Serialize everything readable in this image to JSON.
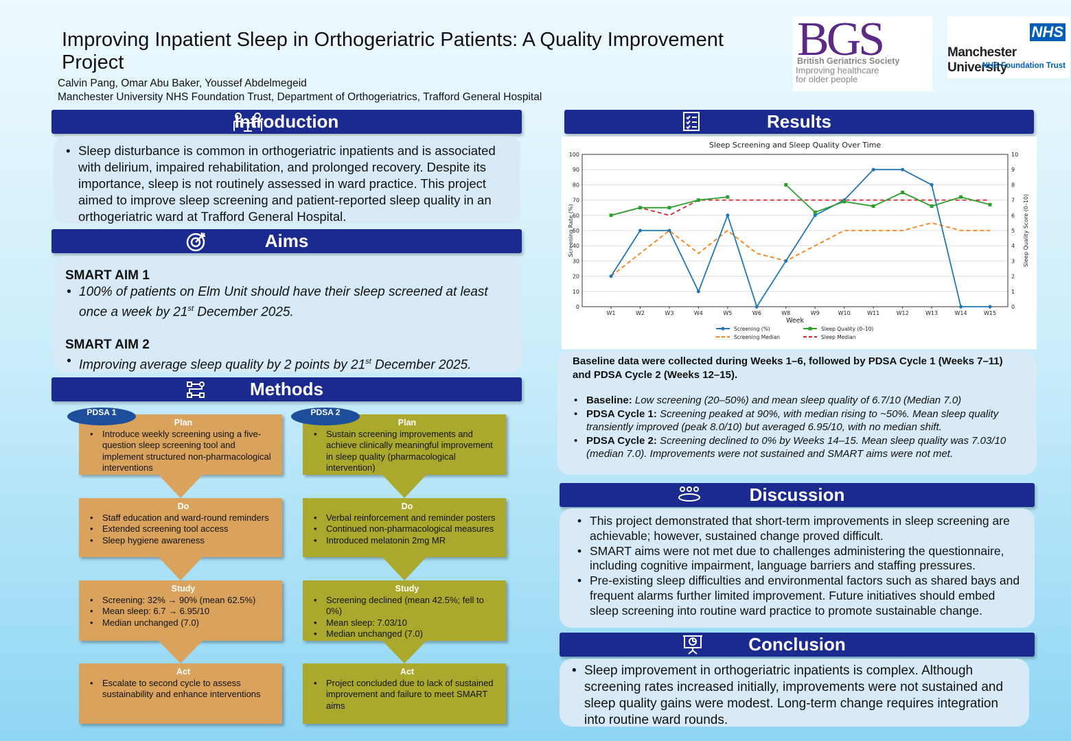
{
  "header": {
    "title": "Improving Inpatient Sleep in Orthogeriatric Patients: A Quality Improvement Project",
    "authors": "Calvin Pang, Omar Abu Baker, Youssef Abdelmegeid",
    "affiliation": "Manchester University NHS Foundation Trust, Department of Orthogeriatrics, Trafford General Hospital"
  },
  "logos": {
    "bgs": {
      "mark": "BGS",
      "name": "British Geriatrics Society",
      "tagline1": "Improving healthcare",
      "tagline2": "for older people"
    },
    "nhs": {
      "badge": "NHS",
      "name": "Manchester University",
      "sub": "NHS Foundation Trust"
    }
  },
  "colors": {
    "header_bar": "#1b2a8e",
    "panel": "#d8eaf7",
    "pdsa1": "#d9a35d",
    "pdsa2": "#aaa92d",
    "screening": "#1f77b4",
    "sleep": "#2ca02c",
    "screening_median": "#ff7f0e",
    "sleep_median": "#d62728"
  },
  "introduction": {
    "title": "Introduction",
    "icon": "meeting-icon",
    "text": "Sleep disturbance is common in orthogeriatric inpatients and is associated with delirium, impaired rehabilitation, and prolonged recovery. Despite its importance, sleep is not routinely assessed in ward practice. This project aimed to improve sleep screening and patient-reported sleep quality in an orthogeriatric ward at Trafford General Hospital."
  },
  "aims": {
    "title": "Aims",
    "icon": "target-icon",
    "aim1_title": "SMART AIM 1",
    "aim1_a": "100% of patients on Elm Unit should have their sleep screened at least once a week by 21",
    "aim1_sup": "st",
    "aim1_b": " December 2025.",
    "aim2_title": "SMART AIM 2",
    "aim2_a": "Improving average sleep quality by 2 points by 21",
    "aim2_sup": "st",
    "aim2_b": " December 2025."
  },
  "methods": {
    "title": "Methods",
    "icon": "flowchart-icon",
    "pdsa1": {
      "label": "PDSA 1",
      "plan": {
        "title": "Plan",
        "items": [
          "Introduce weekly screening using a five-question sleep screening tool and implement structured non-pharmacological interventions"
        ]
      },
      "do": {
        "title": "Do",
        "items": [
          "Staff education and ward-round reminders",
          "Extended screening tool access",
          "Sleep hygiene awareness"
        ]
      },
      "study": {
        "title": "Study",
        "items": [
          "Screening: 32% → 90% (mean 62.5%)",
          "Mean sleep: 6.7 → 6.95/10",
          "Median unchanged (7.0)"
        ]
      },
      "act": {
        "title": "Act",
        "items": [
          "Escalate to second cycle to assess sustainability and enhance interventions"
        ]
      }
    },
    "pdsa2": {
      "label": "PDSA 2",
      "plan": {
        "title": "Plan",
        "items": [
          "Sustain screening improvements and achieve clinically meaningful improvement in sleep quality (pharmacological intervention)"
        ]
      },
      "do": {
        "title": "Do",
        "items": [
          "Verbal reinforcement and reminder posters",
          "Continued non-pharmacological measures",
          "Introduced melatonin 2mg MR"
        ]
      },
      "study": {
        "title": "Study",
        "items": [
          "Screening declined (mean 42.5%; fell to 0%)",
          "Mean sleep: 7.03/10",
          "Median unchanged (7.0)"
        ]
      },
      "act": {
        "title": "Act",
        "items": [
          "Project concluded due to lack of sustained improvement and failure to meet SMART aims"
        ]
      }
    }
  },
  "results": {
    "title": "Results",
    "icon": "checklist-icon",
    "summary": "Baseline data were collected during Weeks 1–6, followed by PDSA Cycle 1 (Weeks 7–11) and PDSA Cycle 2 (Weeks 12–15).",
    "bullets": [
      {
        "label": "Baseline:",
        "text": " Low screening (20–50%) and mean sleep quality of 6.7/10 (Median 7.0)"
      },
      {
        "label": "PDSA Cycle 1:",
        "text": " Screening peaked at 90%, with median rising to ~50%. Mean sleep quality transiently improved (peak 8.0/10) but averaged 6.95/10, with no median shift."
      },
      {
        "label": "PDSA Cycle 2:",
        "text": " Screening declined to 0% by Weeks 14–15. Mean sleep quality was 7.03/10 (median 7.0). Improvements were not sustained and SMART aims were not met."
      }
    ]
  },
  "chart_data": {
    "type": "line",
    "title": "Sleep Screening and Sleep Quality Over Time",
    "xlabel": "Week",
    "ylabel": "Screening Rate (%)",
    "y2label": "Sleep Quality Score (0–10)",
    "ylim": [
      0,
      100
    ],
    "y2lim": [
      0,
      10
    ],
    "yticks": [
      "0",
      "10",
      "20",
      "30",
      "40",
      "50",
      "60",
      "70",
      "80",
      "90",
      "100"
    ],
    "y2ticks": [
      "0",
      "1",
      "2",
      "3",
      "4",
      "5",
      "6",
      "7",
      "8",
      "9",
      "10"
    ],
    "grid": "horizontal",
    "legend": "bottom-center",
    "categories": [
      "W1",
      "W2",
      "W3",
      "W4",
      "W5",
      "W6",
      "W8",
      "W9",
      "W10",
      "W11",
      "W12",
      "W13",
      "W14",
      "W15"
    ],
    "series": [
      {
        "name": "Screening (%)",
        "axis": "left",
        "style": "solid-circle",
        "color": "#1f77b4",
        "values": [
          20,
          50,
          50,
          10,
          60,
          0,
          30,
          60,
          70,
          90,
          90,
          80,
          0,
          0
        ]
      },
      {
        "name": "Sleep Quality (0–10)",
        "axis": "right",
        "style": "solid-square",
        "color": "#2ca02c",
        "values": [
          6,
          6.5,
          6.5,
          7,
          7.2,
          null,
          8,
          6.2,
          6.9,
          6.6,
          7.5,
          6.6,
          7.2,
          6.7
        ]
      },
      {
        "name": "Screening Median",
        "axis": "left",
        "style": "dashed",
        "color": "#ff7f0e",
        "values": [
          20,
          35,
          50,
          35,
          50,
          35,
          30,
          40,
          50,
          50,
          50,
          55,
          50,
          50
        ]
      },
      {
        "name": "Sleep Median",
        "axis": "right",
        "style": "dashed",
        "color": "#d62728",
        "values": [
          6,
          6.5,
          6,
          7,
          7,
          7,
          7,
          7,
          7,
          7,
          7,
          7,
          7,
          7
        ]
      }
    ]
  },
  "discussion": {
    "title": "Discussion",
    "icon": "group-icon",
    "items": [
      "This project demonstrated that short-term improvements in sleep screening are achievable; however, sustained change proved difficult.",
      "SMART aims were not met due to challenges administering the questionnaire, including cognitive impairment, language barriers and staffing pressures.",
      "Pre-existing sleep difficulties and environmental factors such as shared bays and frequent alarms further limited improvement. Future initiatives should embed sleep screening into routine ward practice to promote sustainable change."
    ]
  },
  "conclusion": {
    "title": "Conclusion",
    "icon": "presentation-icon",
    "items": [
      "Sleep improvement in orthogeriatric inpatients is complex. Although screening rates increased initially, improvements were not sustained and sleep quality gains were modest. Long-term change requires integration into routine ward rounds."
    ]
  }
}
